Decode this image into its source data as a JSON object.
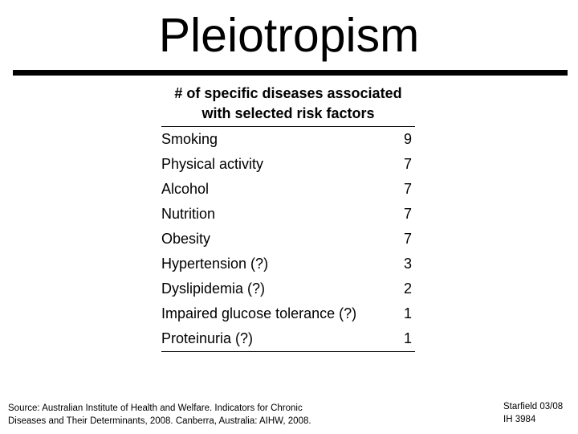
{
  "slide": {
    "title": "Pleiotropism",
    "table": {
      "header_line1": "# of specific diseases associated",
      "header_line2": "with selected risk factors",
      "rows": [
        {
          "label": "Smoking",
          "value": "9"
        },
        {
          "label": "Physical activity",
          "value": "7"
        },
        {
          "label": "Alcohol",
          "value": "7"
        },
        {
          "label": "Nutrition",
          "value": "7"
        },
        {
          "label": "Obesity",
          "value": "7"
        },
        {
          "label": "Hypertension (?)",
          "value": "3"
        },
        {
          "label": "Dyslipidemia (?)",
          "value": "2"
        },
        {
          "label": "Impaired glucose tolerance (?)",
          "value": "1"
        },
        {
          "label": "Proteinuria (?)",
          "value": "1"
        }
      ]
    },
    "footer": {
      "source_line1": "Source: Australian Institute of Health and Welfare. Indicators for Chronic",
      "source_line2": "Diseases and Their Determinants, 2008. Canberra, Australia: AIHW, 2008.",
      "credit_line1": "Starfield 03/08",
      "credit_line2": "IH 3984"
    }
  },
  "chart_data": {
    "type": "table",
    "title": "# of specific diseases associated with selected risk factors",
    "categories": [
      "Smoking",
      "Physical activity",
      "Alcohol",
      "Nutrition",
      "Obesity",
      "Hypertension (?)",
      "Dyslipidemia (?)",
      "Impaired glucose tolerance (?)",
      "Proteinuria (?)"
    ],
    "values": [
      9,
      7,
      7,
      7,
      7,
      3,
      2,
      1,
      1
    ]
  }
}
